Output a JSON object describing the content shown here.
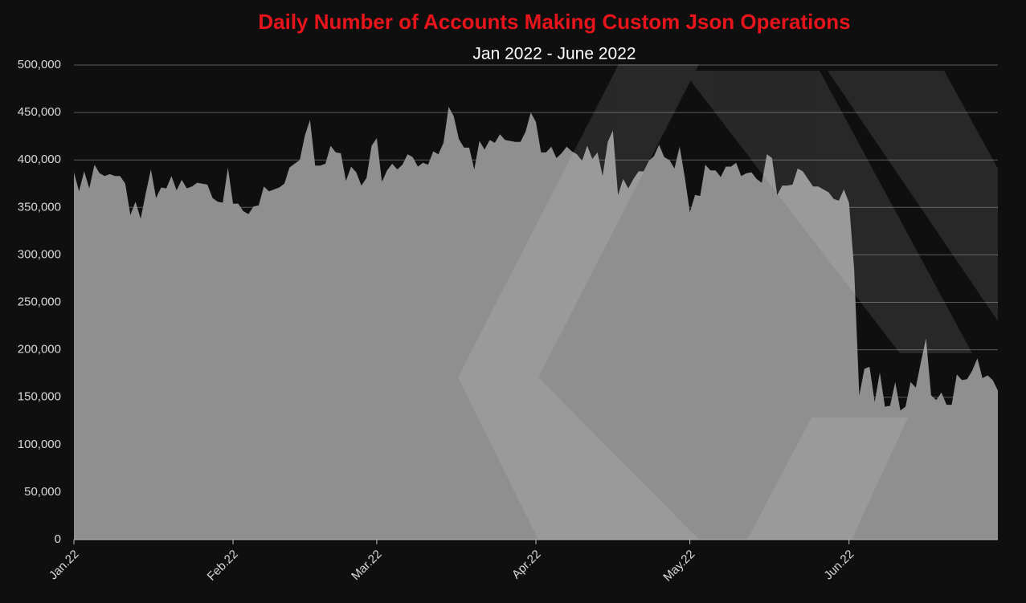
{
  "chart_data": {
    "type": "area",
    "title": "Daily Number of Accounts Making Custom Json Operations",
    "subtitle": "Jan 2022 - June 2022",
    "categories": [
      "Jan.22",
      null,
      null,
      null,
      null,
      null,
      null,
      null,
      null,
      null,
      null,
      null,
      null,
      null,
      null,
      null,
      null,
      null,
      null,
      null,
      null,
      null,
      null,
      null,
      null,
      null,
      null,
      null,
      null,
      null,
      null,
      "Feb.22",
      null,
      null,
      null,
      null,
      null,
      null,
      null,
      null,
      null,
      null,
      null,
      null,
      null,
      null,
      null,
      null,
      null,
      null,
      null,
      null,
      null,
      null,
      null,
      null,
      null,
      null,
      null,
      "Mar.22",
      null,
      null,
      null,
      null,
      null,
      null,
      null,
      null,
      null,
      null,
      null,
      null,
      null,
      null,
      null,
      null,
      null,
      null,
      null,
      null,
      null,
      null,
      null,
      null,
      null,
      null,
      null,
      null,
      null,
      null,
      "Apr.22",
      null,
      null,
      null,
      null,
      null,
      null,
      null,
      null,
      null,
      null,
      null,
      null,
      null,
      null,
      null,
      null,
      null,
      null,
      null,
      null,
      null,
      null,
      null,
      null,
      null,
      null,
      null,
      null,
      null,
      "May.22",
      null,
      null,
      null,
      null,
      null,
      null,
      null,
      null,
      null,
      null,
      null,
      null,
      null,
      null,
      null,
      null,
      null,
      null,
      null,
      null,
      null,
      null,
      null,
      null,
      null,
      null,
      null,
      null,
      null,
      null,
      "Jun.22",
      null,
      null,
      null,
      null,
      null,
      null,
      null,
      null,
      null,
      null,
      null,
      null,
      null,
      null,
      null,
      null,
      null,
      null,
      null,
      null,
      null,
      null,
      null,
      null,
      null,
      null,
      null,
      null,
      null
    ],
    "values": [
      387000,
      367000,
      388000,
      370000,
      395000,
      386000,
      383000,
      385000,
      383000,
      383000,
      375000,
      342000,
      356000,
      338000,
      365000,
      390000,
      360000,
      371000,
      370000,
      383000,
      368000,
      379000,
      370000,
      372000,
      376000,
      375000,
      374000,
      360000,
      356000,
      355000,
      392000,
      354000,
      354000,
      346000,
      343000,
      351000,
      352000,
      372000,
      367000,
      369000,
      371000,
      375000,
      392000,
      396000,
      400000,
      426000,
      442000,
      394000,
      394000,
      396000,
      415000,
      408000,
      407000,
      378000,
      393000,
      387000,
      373000,
      381000,
      415000,
      423000,
      377000,
      389000,
      396000,
      390000,
      395000,
      406000,
      403000,
      393000,
      397000,
      395000,
      409000,
      406000,
      418000,
      456000,
      446000,
      422000,
      413000,
      413000,
      390000,
      420000,
      411000,
      421000,
      418000,
      427000,
      421000,
      420000,
      419000,
      419000,
      430000,
      450000,
      440000,
      408000,
      408000,
      414000,
      402000,
      407000,
      414000,
      409000,
      406000,
      399000,
      415000,
      401000,
      408000,
      383000,
      419000,
      431000,
      363000,
      380000,
      370000,
      380000,
      388000,
      388000,
      399000,
      404000,
      416000,
      403000,
      400000,
      391000,
      414000,
      382000,
      345000,
      363000,
      362000,
      395000,
      389000,
      389000,
      382000,
      393000,
      393000,
      397000,
      383000,
      386000,
      387000,
      380000,
      376000,
      406000,
      402000,
      363000,
      373000,
      373000,
      374000,
      391000,
      388000,
      380000,
      372000,
      372000,
      369000,
      366000,
      359000,
      357000,
      369000,
      355000,
      285000,
      152000,
      180000,
      182000,
      145000,
      176000,
      140000,
      141000,
      166000,
      136000,
      140000,
      166000,
      160000,
      187000,
      212000,
      152000,
      147000,
      155000,
      142000,
      142000,
      174000,
      168000,
      169000,
      178000,
      191000,
      170000,
      173000,
      168000,
      157000
    ],
    "color": "#8f8f8f",
    "ylim": [
      0,
      500000
    ],
    "yticks": [
      0,
      {
        "value": 50000,
        "label": "50,000"
      },
      {
        "value": 100000,
        "label": "100,000"
      },
      {
        "value": 150000,
        "label": "150,000"
      },
      {
        "value": 200000,
        "label": "200,000"
      },
      {
        "value": 250000,
        "label": "250,000"
      },
      {
        "value": 300000,
        "label": "300,000"
      },
      {
        "value": 350000,
        "label": "350,000"
      },
      {
        "value": 400000,
        "label": "400,000"
      },
      {
        "value": 450000,
        "label": "450,000"
      },
      {
        "value": 500000,
        "label": "500,000"
      }
    ],
    "grid": true
  }
}
